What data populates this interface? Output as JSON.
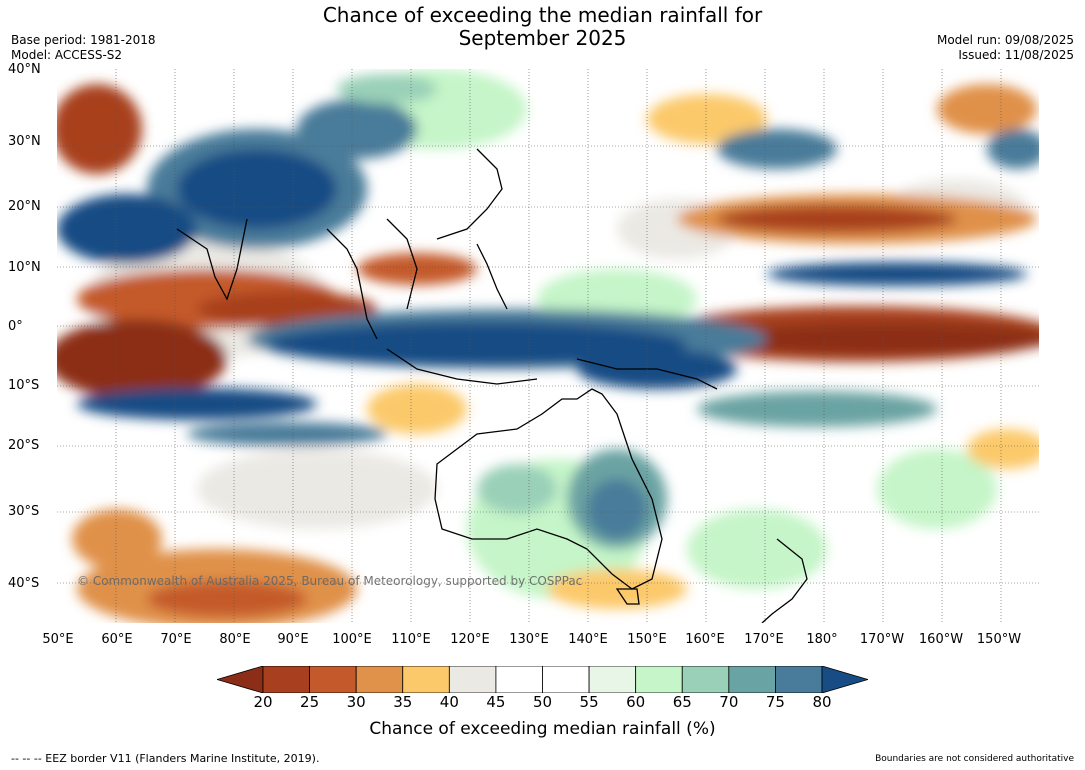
{
  "title_line1": "Chance of exceeding the median rainfall for",
  "title_line2": "September 2025",
  "base_period": "Base period: 1981-2018",
  "model": "Model: ACCESS-S2",
  "model_run": "Model run: 09/08/2025",
  "issued": "Issued: 11/08/2025",
  "lat_labels": [
    "40°N",
    "30°N",
    "20°N",
    "10°N",
    "0°",
    "10°S",
    "20°S",
    "30°S",
    "40°S"
  ],
  "lon_labels": [
    "50°E",
    "60°E",
    "70°E",
    "80°E",
    "90°E",
    "100°E",
    "110°E",
    "120°E",
    "130°E",
    "140°E",
    "150°E",
    "160°E",
    "170°E",
    "180°",
    "170°W",
    "160°W",
    "150°W"
  ],
  "copyright": "© Commonwealth of Australia 2025, Bureau of Meteorology, supported by COSPPac",
  "colorbar": {
    "ticks": [
      "20",
      "25",
      "30",
      "35",
      "40",
      "45",
      "50",
      "55",
      "60",
      "65",
      "70",
      "75",
      "80"
    ],
    "label": "Chance of exceeding median rainfall (%)",
    "colors": [
      "#8c2d18",
      "#a8401f",
      "#c45a2c",
      "#e0914a",
      "#fcc96a",
      "#ebe9e4",
      "#ffffff",
      "#ffffff",
      "#e8f6e8",
      "#c5f5c8",
      "#9ad0b8",
      "#6aa3a3",
      "#497c9a",
      "#174c84"
    ]
  },
  "footer_left": "--  --  -- EEZ border V11 (Flanders Marine Institute, 2019).",
  "footer_right": "Boundaries are not considered authoritative"
}
